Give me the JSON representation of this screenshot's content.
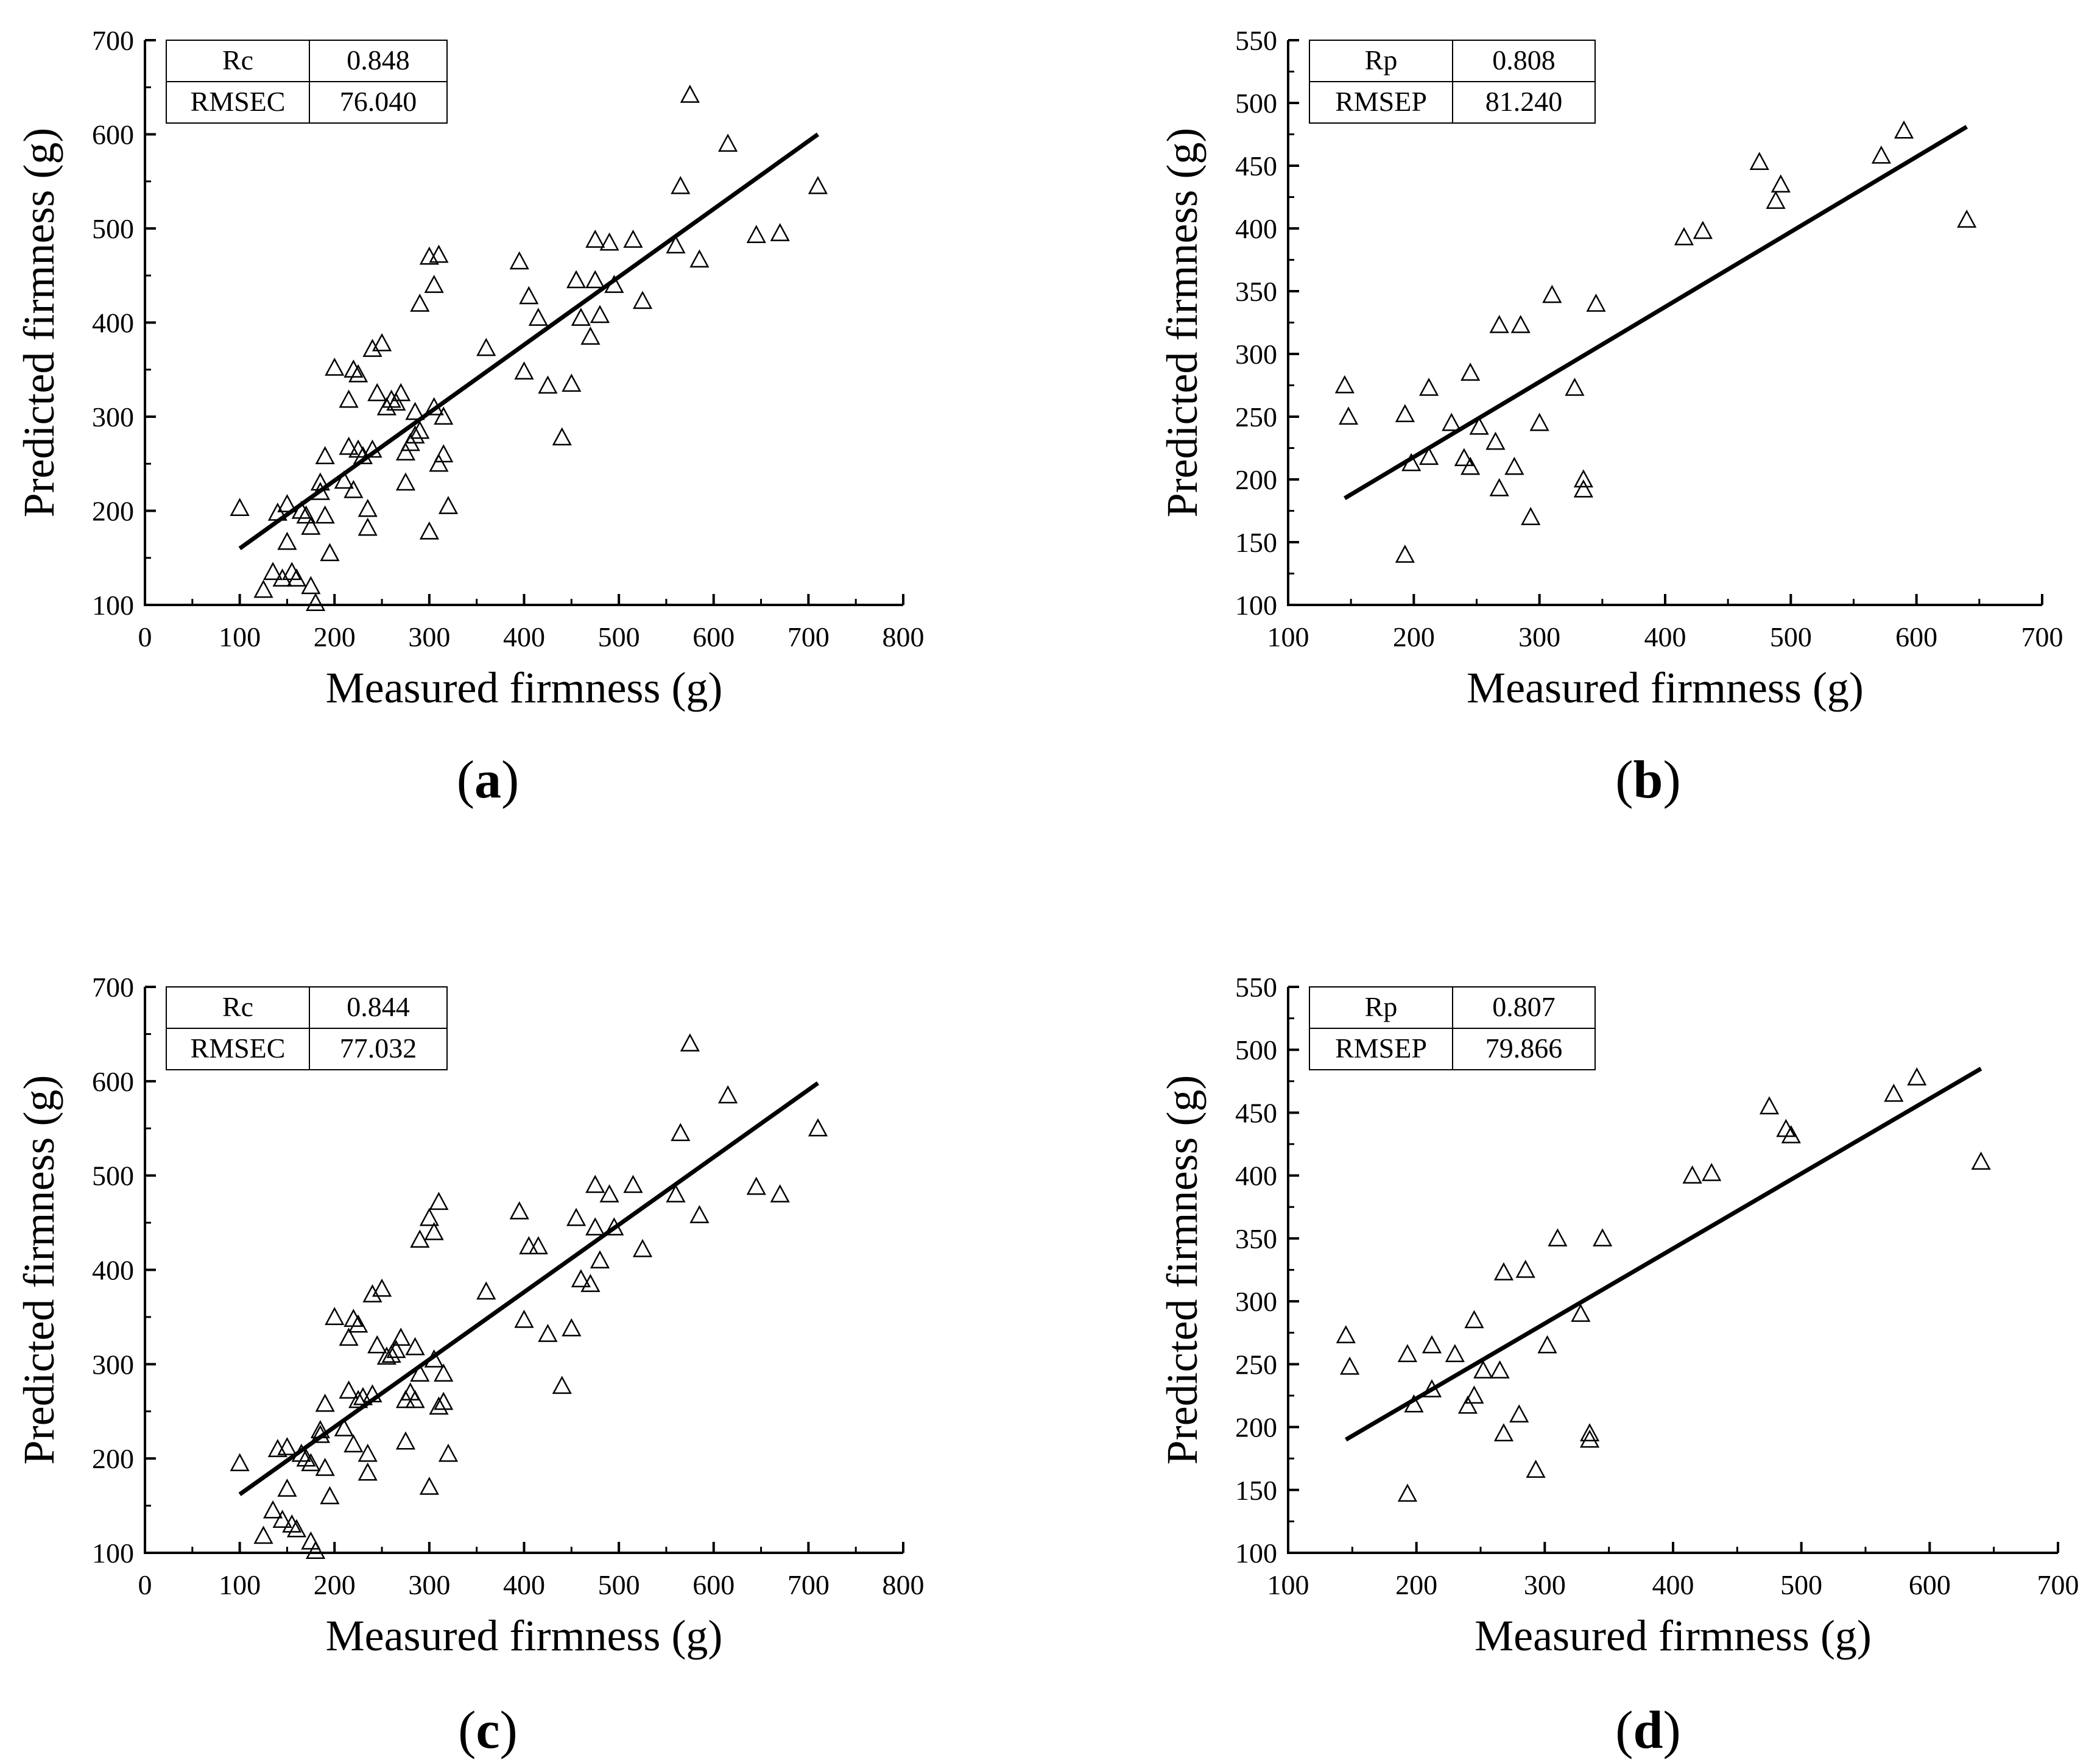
{
  "panels": [
    {
      "label_open": "(",
      "label_letter": "a",
      "label_close": ")"
    },
    {
      "label_open": "(",
      "label_letter": "b",
      "label_close": ")"
    },
    {
      "label_open": "(",
      "label_letter": "c",
      "label_close": ")"
    },
    {
      "label_open": "(",
      "label_letter": "d",
      "label_close": ")"
    }
  ],
  "chart_data": [
    {
      "type": "scatter",
      "xlabel": "Measured firmness (g)",
      "ylabel": "Predicted firmness (g)",
      "xlim": [
        0,
        800
      ],
      "ylim": [
        100,
        700
      ],
      "xticks": [
        0,
        100,
        200,
        300,
        400,
        500,
        600,
        700,
        800
      ],
      "yticks": [
        100,
        200,
        300,
        400,
        500,
        600,
        700
      ],
      "stats": [
        {
          "name": "Rc",
          "value": "0.848"
        },
        {
          "name": "RMSEC",
          "value": "76.040"
        }
      ],
      "marker": "open-triangle",
      "fit_line": [
        [
          100,
          160
        ],
        [
          710,
          600
        ]
      ],
      "points": [
        [
          100,
          203
        ],
        [
          125,
          116
        ],
        [
          135,
          135
        ],
        [
          140,
          198
        ],
        [
          145,
          128
        ],
        [
          150,
          167
        ],
        [
          150,
          207
        ],
        [
          155,
          135
        ],
        [
          160,
          128
        ],
        [
          165,
          200
        ],
        [
          170,
          195
        ],
        [
          175,
          183
        ],
        [
          175,
          120
        ],
        [
          180,
          102
        ],
        [
          185,
          230
        ],
        [
          185,
          220
        ],
        [
          190,
          195
        ],
        [
          190,
          258
        ],
        [
          195,
          155
        ],
        [
          200,
          352
        ],
        [
          210,
          232
        ],
        [
          215,
          318
        ],
        [
          215,
          268
        ],
        [
          220,
          350
        ],
        [
          220,
          222
        ],
        [
          225,
          345
        ],
        [
          225,
          265
        ],
        [
          230,
          258
        ],
        [
          235,
          182
        ],
        [
          235,
          202
        ],
        [
          240,
          265
        ],
        [
          240,
          372
        ],
        [
          245,
          325
        ],
        [
          250,
          378
        ],
        [
          255,
          310
        ],
        [
          260,
          318
        ],
        [
          265,
          315
        ],
        [
          270,
          325
        ],
        [
          275,
          230
        ],
        [
          275,
          262
        ],
        [
          280,
          272
        ],
        [
          285,
          305
        ],
        [
          285,
          280
        ],
        [
          290,
          420
        ],
        [
          290,
          285
        ],
        [
          300,
          178
        ],
        [
          300,
          470
        ],
        [
          305,
          440
        ],
        [
          305,
          310
        ],
        [
          310,
          250
        ],
        [
          310,
          472
        ],
        [
          315,
          260
        ],
        [
          315,
          300
        ],
        [
          320,
          205
        ],
        [
          360,
          373
        ],
        [
          395,
          465
        ],
        [
          400,
          348
        ],
        [
          405,
          428
        ],
        [
          415,
          405
        ],
        [
          425,
          333
        ],
        [
          440,
          278
        ],
        [
          450,
          335
        ],
        [
          455,
          445
        ],
        [
          460,
          405
        ],
        [
          470,
          385
        ],
        [
          475,
          445
        ],
        [
          475,
          488
        ],
        [
          480,
          408
        ],
        [
          490,
          485
        ],
        [
          495,
          440
        ],
        [
          515,
          488
        ],
        [
          525,
          423
        ],
        [
          560,
          482
        ],
        [
          565,
          545
        ],
        [
          575,
          642
        ],
        [
          585,
          467
        ],
        [
          615,
          590
        ],
        [
          645,
          493
        ],
        [
          670,
          495
        ],
        [
          710,
          545
        ]
      ]
    },
    {
      "type": "scatter",
      "xlabel": "Measured firmness (g)",
      "ylabel": "Predicted firmness (g)",
      "xlim": [
        100,
        700
      ],
      "ylim": [
        100,
        550
      ],
      "xticks": [
        100,
        200,
        300,
        400,
        500,
        600,
        700
      ],
      "yticks": [
        100,
        150,
        200,
        250,
        300,
        350,
        400,
        450,
        500,
        550
      ],
      "stats": [
        {
          "name": "Rp",
          "value": "0.808"
        },
        {
          "name": "RMSEP",
          "value": "81.240"
        }
      ],
      "marker": "open-triangle",
      "fit_line": [
        [
          145,
          185
        ],
        [
          640,
          481
        ]
      ],
      "points": [
        [
          145,
          275
        ],
        [
          148,
          250
        ],
        [
          193,
          140
        ],
        [
          193,
          252
        ],
        [
          198,
          213
        ],
        [
          212,
          273
        ],
        [
          212,
          218
        ],
        [
          230,
          245
        ],
        [
          240,
          217
        ],
        [
          245,
          285
        ],
        [
          245,
          210
        ],
        [
          252,
          242
        ],
        [
          265,
          230
        ],
        [
          268,
          193
        ],
        [
          268,
          323
        ],
        [
          280,
          210
        ],
        [
          285,
          323
        ],
        [
          293,
          170
        ],
        [
          300,
          245
        ],
        [
          310,
          347
        ],
        [
          328,
          273
        ],
        [
          335,
          192
        ],
        [
          335,
          200
        ],
        [
          345,
          340
        ],
        [
          415,
          393
        ],
        [
          430,
          398
        ],
        [
          475,
          453
        ],
        [
          488,
          422
        ],
        [
          492,
          435
        ],
        [
          572,
          458
        ],
        [
          590,
          478
        ],
        [
          640,
          407
        ]
      ]
    },
    {
      "type": "scatter",
      "xlabel": "Measured firmness (g)",
      "ylabel": "Predicted firmness (g)",
      "xlim": [
        0,
        800
      ],
      "ylim": [
        100,
        700
      ],
      "xticks": [
        0,
        100,
        200,
        300,
        400,
        500,
        600,
        700,
        800
      ],
      "yticks": [
        100,
        200,
        300,
        400,
        500,
        600,
        700
      ],
      "stats": [
        {
          "name": "Rc",
          "value": "0.844"
        },
        {
          "name": "RMSEC",
          "value": "77.032"
        }
      ],
      "marker": "open-triangle",
      "fit_line": [
        [
          100,
          162
        ],
        [
          710,
          598
        ]
      ],
      "points": [
        [
          100,
          195
        ],
        [
          125,
          118
        ],
        [
          135,
          145
        ],
        [
          140,
          210
        ],
        [
          145,
          135
        ],
        [
          150,
          168
        ],
        [
          150,
          212
        ],
        [
          155,
          130
        ],
        [
          160,
          125
        ],
        [
          165,
          205
        ],
        [
          170,
          200
        ],
        [
          175,
          195
        ],
        [
          175,
          112
        ],
        [
          180,
          102
        ],
        [
          185,
          225
        ],
        [
          185,
          230
        ],
        [
          190,
          190
        ],
        [
          190,
          258
        ],
        [
          195,
          160
        ],
        [
          200,
          350
        ],
        [
          210,
          232
        ],
        [
          215,
          328
        ],
        [
          215,
          272
        ],
        [
          220,
          348
        ],
        [
          220,
          215
        ],
        [
          225,
          342
        ],
        [
          225,
          262
        ],
        [
          230,
          265
        ],
        [
          235,
          185
        ],
        [
          235,
          205
        ],
        [
          240,
          268
        ],
        [
          240,
          374
        ],
        [
          245,
          320
        ],
        [
          250,
          380
        ],
        [
          255,
          308
        ],
        [
          260,
          310
        ],
        [
          265,
          315
        ],
        [
          270,
          328
        ],
        [
          275,
          218
        ],
        [
          275,
          262
        ],
        [
          280,
          270
        ],
        [
          285,
          318
        ],
        [
          285,
          262
        ],
        [
          290,
          432
        ],
        [
          290,
          290
        ],
        [
          300,
          170
        ],
        [
          300,
          455
        ],
        [
          305,
          440
        ],
        [
          305,
          305
        ],
        [
          310,
          255
        ],
        [
          310,
          472
        ],
        [
          315,
          260
        ],
        [
          315,
          290
        ],
        [
          320,
          205
        ],
        [
          360,
          377
        ],
        [
          395,
          462
        ],
        [
          400,
          347
        ],
        [
          405,
          425
        ],
        [
          415,
          425
        ],
        [
          425,
          332
        ],
        [
          440,
          277
        ],
        [
          450,
          338
        ],
        [
          455,
          455
        ],
        [
          460,
          390
        ],
        [
          470,
          385
        ],
        [
          475,
          490
        ],
        [
          475,
          445
        ],
        [
          480,
          410
        ],
        [
          490,
          480
        ],
        [
          495,
          445
        ],
        [
          515,
          490
        ],
        [
          525,
          422
        ],
        [
          560,
          480
        ],
        [
          565,
          545
        ],
        [
          575,
          640
        ],
        [
          585,
          458
        ],
        [
          615,
          585
        ],
        [
          645,
          488
        ],
        [
          670,
          480
        ],
        [
          710,
          550
        ]
      ]
    },
    {
      "type": "scatter",
      "xlabel": "Measured firmness (g)",
      "ylabel": "Predicted firmness (g)",
      "xlim": [
        100,
        700
      ],
      "ylim": [
        100,
        550
      ],
      "xticks": [
        100,
        200,
        300,
        400,
        500,
        600,
        700
      ],
      "yticks": [
        100,
        150,
        200,
        250,
        300,
        350,
        400,
        450,
        500,
        550
      ],
      "stats": [
        {
          "name": "Rp",
          "value": "0.807"
        },
        {
          "name": "RMSEP",
          "value": "79.866"
        }
      ],
      "marker": "open-triangle",
      "fit_line": [
        [
          145,
          190
        ],
        [
          640,
          485
        ]
      ],
      "points": [
        [
          145,
          273
        ],
        [
          148,
          248
        ],
        [
          193,
          147
        ],
        [
          193,
          258
        ],
        [
          198,
          218
        ],
        [
          212,
          265
        ],
        [
          212,
          230
        ],
        [
          230,
          258
        ],
        [
          240,
          217
        ],
        [
          245,
          285
        ],
        [
          245,
          225
        ],
        [
          252,
          245
        ],
        [
          265,
          245
        ],
        [
          268,
          195
        ],
        [
          268,
          323
        ],
        [
          280,
          210
        ],
        [
          285,
          325
        ],
        [
          293,
          166
        ],
        [
          302,
          265
        ],
        [
          310,
          350
        ],
        [
          328,
          290
        ],
        [
          335,
          190
        ],
        [
          335,
          195
        ],
        [
          345,
          350
        ],
        [
          415,
          400
        ],
        [
          430,
          402
        ],
        [
          475,
          455
        ],
        [
          488,
          437
        ],
        [
          492,
          432
        ],
        [
          572,
          465
        ],
        [
          590,
          478
        ],
        [
          640,
          411
        ]
      ]
    }
  ]
}
